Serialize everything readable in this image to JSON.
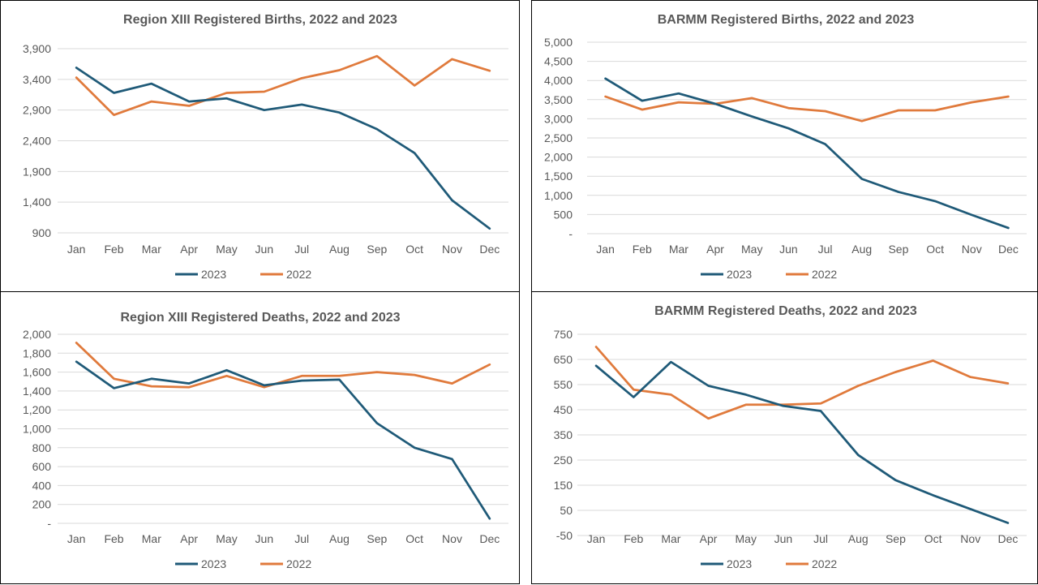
{
  "chart_data": [
    {
      "type": "line",
      "title": "Region XIII  Registered Births, 2022 and 2023",
      "categories": [
        "Jan",
        "Feb",
        "Mar",
        "Apr",
        "May",
        "Jun",
        "Jul",
        "Aug",
        "Sep",
        "Oct",
        "Nov",
        "Dec"
      ],
      "y_ticks": [
        "900",
        "1,400",
        "1,900",
        "2,400",
        "2,900",
        "3,400",
        "3,900"
      ],
      "y_tick_values": [
        900,
        1400,
        1900,
        2400,
        2900,
        3400,
        3900
      ],
      "ylim": [
        900,
        3900
      ],
      "grid": true,
      "legend_position": "bottom",
      "series": [
        {
          "name": "2023",
          "color": "#1f5a78",
          "values": [
            3590,
            3180,
            3330,
            3040,
            3090,
            2900,
            2990,
            2860,
            2590,
            2200,
            1430,
            970
          ]
        },
        {
          "name": "2022",
          "color": "#e07a3c",
          "values": [
            3430,
            2820,
            3040,
            2970,
            3180,
            3200,
            3420,
            3550,
            3780,
            3300,
            3730,
            3540
          ]
        }
      ]
    },
    {
      "type": "line",
      "title": "BARMM  Registered Births, 2022 and 2023",
      "categories": [
        "Jan",
        "Feb",
        "Mar",
        "Apr",
        "May",
        "Jun",
        "Jul",
        "Aug",
        "Sep",
        "Oct",
        "Nov",
        "Dec"
      ],
      "y_ticks": [
        "-",
        "500",
        "1,000",
        "1,500",
        "2,000",
        "2,500",
        "3,000",
        "3,500",
        "4,000",
        "4,500",
        "5,000"
      ],
      "y_tick_values": [
        0,
        500,
        1000,
        1500,
        2000,
        2500,
        3000,
        3500,
        4000,
        4500,
        5000
      ],
      "ylim": [
        0,
        5000
      ],
      "grid": true,
      "legend_position": "bottom",
      "series": [
        {
          "name": "2023",
          "color": "#1f5a78",
          "values": [
            4050,
            3470,
            3660,
            3390,
            3060,
            2750,
            2340,
            1430,
            1090,
            850,
            490,
            150
          ]
        },
        {
          "name": "2022",
          "color": "#e07a3c",
          "values": [
            3580,
            3240,
            3430,
            3390,
            3540,
            3280,
            3200,
            2940,
            3220,
            3220,
            3430,
            3580
          ]
        }
      ]
    },
    {
      "type": "line",
      "title": "Region XIII  Registered Deaths, 2022 and 2023",
      "categories": [
        "Jan",
        "Feb",
        "Mar",
        "Apr",
        "May",
        "Jun",
        "Jul",
        "Aug",
        "Sep",
        "Oct",
        "Nov",
        "Dec"
      ],
      "y_ticks": [
        "-",
        "200",
        "400",
        "600",
        "800",
        "1,000",
        "1,200",
        "1,400",
        "1,600",
        "1,800",
        "2,000"
      ],
      "y_tick_values": [
        0,
        200,
        400,
        600,
        800,
        1000,
        1200,
        1400,
        1600,
        1800,
        2000
      ],
      "ylim": [
        0,
        2000
      ],
      "grid": true,
      "legend_position": "bottom",
      "series": [
        {
          "name": "2023",
          "color": "#1f5a78",
          "values": [
            1710,
            1430,
            1530,
            1480,
            1620,
            1460,
            1510,
            1520,
            1060,
            800,
            680,
            50
          ]
        },
        {
          "name": "2022",
          "color": "#e07a3c",
          "values": [
            1910,
            1530,
            1450,
            1440,
            1560,
            1440,
            1560,
            1560,
            1600,
            1570,
            1480,
            1680
          ]
        }
      ]
    },
    {
      "type": "line",
      "title": "BARMM  Registered Deaths, 2022 and 2023",
      "categories": [
        "Jan",
        "Feb",
        "Mar",
        "Apr",
        "May",
        "Jun",
        "Jul",
        "Aug",
        "Sep",
        "Oct",
        "Nov",
        "Dec"
      ],
      "y_ticks": [
        "-50",
        "50",
        "150",
        "250",
        "350",
        "450",
        "550",
        "650",
        "750"
      ],
      "y_tick_values": [
        -50,
        50,
        150,
        250,
        350,
        450,
        550,
        650,
        750
      ],
      "ylim": [
        -50,
        750
      ],
      "grid": true,
      "legend_position": "bottom",
      "series": [
        {
          "name": "2023",
          "color": "#1f5a78",
          "values": [
            625,
            500,
            640,
            545,
            510,
            465,
            445,
            270,
            170,
            110,
            55,
            0
          ]
        },
        {
          "name": "2022",
          "color": "#e07a3c",
          "values": [
            700,
            530,
            510,
            415,
            470,
            470,
            475,
            545,
            600,
            645,
            580,
            555
          ]
        }
      ]
    }
  ]
}
